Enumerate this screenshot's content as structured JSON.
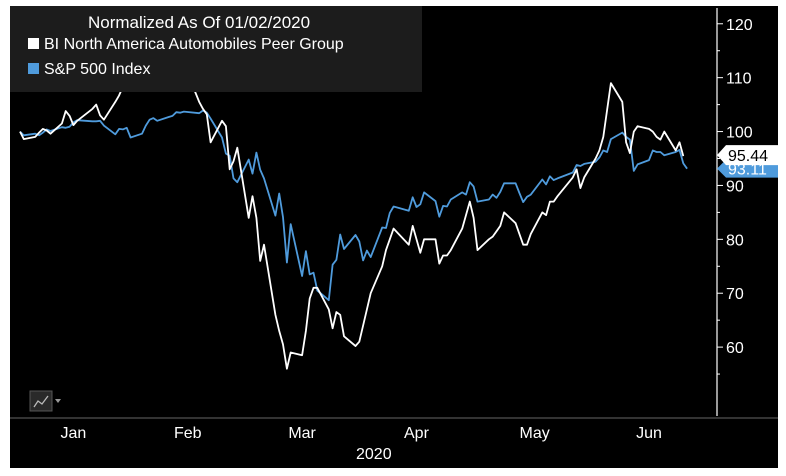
{
  "chart_data": {
    "type": "line",
    "title": "Normalized As Of 01/02/2020",
    "x_axis": {
      "months": [
        "Jan",
        "Feb",
        "Mar",
        "Apr",
        "May",
        "Jun"
      ],
      "year": "2020",
      "range": [
        "2020-01-02",
        "2020-07-01"
      ]
    },
    "y_axis": {
      "side": "right",
      "ticks": [
        60,
        70,
        80,
        90,
        100,
        110,
        120
      ],
      "tick_labels": [
        "60",
        "70",
        "80",
        "90",
        "100",
        "110",
        "120"
      ],
      "range": [
        50,
        122
      ]
    },
    "legend_position": "top-left",
    "grid": false,
    "series": [
      {
        "name": "BI North America Automobiles Peer Group",
        "color": "#ffffff",
        "last_value": "95.44",
        "points": [
          [
            "2020-01-02",
            100
          ],
          [
            "2020-01-03",
            98.6
          ],
          [
            "2020-01-06",
            99.0
          ],
          [
            "2020-01-07",
            99.8
          ],
          [
            "2020-01-08",
            100.5
          ],
          [
            "2020-01-09",
            100.2
          ],
          [
            "2020-01-10",
            99.6
          ],
          [
            "2020-01-13",
            101.5
          ],
          [
            "2020-01-14",
            103.8
          ],
          [
            "2020-01-15",
            102.9
          ],
          [
            "2020-01-16",
            101.2
          ],
          [
            "2020-01-17",
            102.0
          ],
          [
            "2020-01-21",
            104.2
          ],
          [
            "2020-01-22",
            105.0
          ],
          [
            "2020-01-23",
            103.0
          ],
          [
            "2020-01-24",
            102.2
          ],
          [
            "2020-01-27",
            105.5
          ],
          [
            "2020-01-28",
            106.7
          ],
          [
            "2020-01-29",
            108.3
          ],
          [
            "2020-01-30",
            113.0
          ],
          [
            "2020-01-31",
            118.5
          ],
          [
            "2020-02-03",
            110.0
          ],
          [
            "2020-02-04",
            109.5
          ],
          [
            "2020-02-05",
            112.5
          ],
          [
            "2020-02-06",
            115.2
          ],
          [
            "2020-02-07",
            112.0
          ],
          [
            "2020-02-10",
            111.0
          ],
          [
            "2020-02-11",
            113.0
          ],
          [
            "2020-02-12",
            114.0
          ],
          [
            "2020-02-13",
            117.5
          ],
          [
            "2020-02-14",
            112.5
          ],
          [
            "2020-02-18",
            105.5
          ],
          [
            "2020-02-19",
            104.2
          ],
          [
            "2020-02-20",
            103.2
          ],
          [
            "2020-02-21",
            98.0
          ],
          [
            "2020-02-24",
            102.0
          ],
          [
            "2020-02-25",
            101.0
          ],
          [
            "2020-02-26",
            93.0
          ],
          [
            "2020-02-27",
            94.5
          ],
          [
            "2020-02-28",
            97.0
          ],
          [
            "2020-03-02",
            84.0
          ],
          [
            "2020-03-03",
            88.0
          ],
          [
            "2020-03-04",
            84.0
          ],
          [
            "2020-03-05",
            76.0
          ],
          [
            "2020-03-06",
            79.0
          ],
          [
            "2020-03-09",
            66.0
          ],
          [
            "2020-03-10",
            63.0
          ],
          [
            "2020-03-11",
            60.5
          ],
          [
            "2020-03-12",
            56.0
          ],
          [
            "2020-03-13",
            59.0
          ],
          [
            "2020-03-16",
            58.5
          ],
          [
            "2020-03-17",
            63.0
          ],
          [
            "2020-03-18",
            69.0
          ],
          [
            "2020-03-19",
            71.0
          ],
          [
            "2020-03-20",
            71.0
          ],
          [
            "2020-03-23",
            67.0
          ],
          [
            "2020-03-24",
            63.5
          ],
          [
            "2020-03-25",
            66.5
          ],
          [
            "2020-03-26",
            66.0
          ],
          [
            "2020-03-27",
            62.0
          ],
          [
            "2020-03-30",
            60.2
          ],
          [
            "2020-03-31",
            61.0
          ],
          [
            "2020-04-01",
            64.0
          ],
          [
            "2020-04-02",
            67.0
          ],
          [
            "2020-04-03",
            70.0
          ],
          [
            "2020-04-06",
            75.0
          ],
          [
            "2020-04-07",
            78.0
          ],
          [
            "2020-04-08",
            80.0
          ],
          [
            "2020-04-09",
            82.0
          ],
          [
            "2020-04-13",
            79.0
          ],
          [
            "2020-04-14",
            82.5
          ],
          [
            "2020-04-15",
            80.0
          ],
          [
            "2020-04-16",
            77.5
          ],
          [
            "2020-04-17",
            80.0
          ],
          [
            "2020-04-20",
            80.0
          ],
          [
            "2020-04-21",
            75.5
          ],
          [
            "2020-04-22",
            77.0
          ],
          [
            "2020-04-23",
            77.0
          ],
          [
            "2020-04-24",
            78.0
          ],
          [
            "2020-04-27",
            82.0
          ],
          [
            "2020-04-28",
            84.5
          ],
          [
            "2020-04-29",
            87.0
          ],
          [
            "2020-04-30",
            84.0
          ],
          [
            "2020-05-01",
            78.0
          ],
          [
            "2020-05-04",
            80.0
          ],
          [
            "2020-05-05",
            80.5
          ],
          [
            "2020-05-06",
            81.5
          ],
          [
            "2020-05-07",
            82.5
          ],
          [
            "2020-05-08",
            85.0
          ],
          [
            "2020-05-11",
            83.0
          ],
          [
            "2020-05-12",
            81.0
          ],
          [
            "2020-05-13",
            79.0
          ],
          [
            "2020-05-14",
            79.0
          ],
          [
            "2020-05-15",
            81.0
          ],
          [
            "2020-05-18",
            85.0
          ],
          [
            "2020-05-19",
            84.5
          ],
          [
            "2020-05-20",
            87.0
          ],
          [
            "2020-05-21",
            87.0
          ],
          [
            "2020-05-22",
            88.0
          ],
          [
            "2020-05-26",
            91.5
          ],
          [
            "2020-05-27",
            93.0
          ],
          [
            "2020-05-28",
            89.5
          ],
          [
            "2020-05-29",
            91.5
          ],
          [
            "2020-06-01",
            95.0
          ],
          [
            "2020-06-02",
            96.5
          ],
          [
            "2020-06-03",
            99.0
          ],
          [
            "2020-06-04",
            104.0
          ],
          [
            "2020-06-05",
            109.0
          ],
          [
            "2020-06-08",
            105.5
          ],
          [
            "2020-06-09",
            98.0
          ],
          [
            "2020-06-10",
            96.0
          ],
          [
            "2020-06-11",
            100.0
          ],
          [
            "2020-06-12",
            101.0
          ],
          [
            "2020-06-15",
            100.5
          ],
          [
            "2020-06-16",
            100.0
          ],
          [
            "2020-06-17",
            99.0
          ],
          [
            "2020-06-18",
            98.5
          ],
          [
            "2020-06-19",
            100.0
          ],
          [
            "2020-06-22",
            96.5
          ],
          [
            "2020-06-23",
            98.0
          ],
          [
            "2020-06-24",
            95.44
          ]
        ]
      },
      {
        "name": "S&P 500 Index",
        "color": "#4f9bdc",
        "last_value": "93.11",
        "points": [
          [
            "2020-01-02",
            100
          ],
          [
            "2020-01-03",
            99.3
          ],
          [
            "2020-01-06",
            99.6
          ],
          [
            "2020-01-07",
            99.3
          ],
          [
            "2020-01-08",
            99.8
          ],
          [
            "2020-01-09",
            100.4
          ],
          [
            "2020-01-10",
            100.1
          ],
          [
            "2020-01-13",
            100.8
          ],
          [
            "2020-01-14",
            100.7
          ],
          [
            "2020-01-15",
            100.9
          ],
          [
            "2020-01-16",
            101.7
          ],
          [
            "2020-01-17",
            102.1
          ],
          [
            "2020-01-21",
            101.9
          ],
          [
            "2020-01-22",
            101.9
          ],
          [
            "2020-01-23",
            102.0
          ],
          [
            "2020-01-24",
            101.1
          ],
          [
            "2020-01-27",
            99.5
          ],
          [
            "2020-01-28",
            100.5
          ],
          [
            "2020-01-29",
            100.4
          ],
          [
            "2020-01-30",
            100.7
          ],
          [
            "2020-01-31",
            98.9
          ],
          [
            "2020-02-03",
            99.6
          ],
          [
            "2020-02-04",
            101.1
          ],
          [
            "2020-02-05",
            102.2
          ],
          [
            "2020-02-06",
            102.5
          ],
          [
            "2020-02-07",
            102.0
          ],
          [
            "2020-02-10",
            102.7
          ],
          [
            "2020-02-11",
            102.9
          ],
          [
            "2020-02-12",
            103.6
          ],
          [
            "2020-02-13",
            103.5
          ],
          [
            "2020-02-14",
            103.7
          ],
          [
            "2020-02-18",
            103.4
          ],
          [
            "2020-02-19",
            103.9
          ],
          [
            "2020-02-20",
            103.5
          ],
          [
            "2020-02-21",
            102.4
          ],
          [
            "2020-02-24",
            98.9
          ],
          [
            "2020-02-25",
            95.9
          ],
          [
            "2020-02-26",
            95.5
          ],
          [
            "2020-02-27",
            91.3
          ],
          [
            "2020-02-28",
            90.6
          ],
          [
            "2020-03-02",
            94.8
          ],
          [
            "2020-03-03",
            92.2
          ],
          [
            "2020-03-04",
            96.1
          ],
          [
            "2020-03-05",
            92.9
          ],
          [
            "2020-03-06",
            91.3
          ],
          [
            "2020-03-09",
            84.4
          ],
          [
            "2020-03-10",
            88.5
          ],
          [
            "2020-03-11",
            84.1
          ],
          [
            "2020-03-12",
            75.7
          ],
          [
            "2020-03-13",
            82.8
          ],
          [
            "2020-03-16",
            73.2
          ],
          [
            "2020-03-17",
            77.8
          ],
          [
            "2020-03-18",
            73.5
          ],
          [
            "2020-03-19",
            73.8
          ],
          [
            "2020-03-20",
            70.5
          ],
          [
            "2020-03-23",
            68.7
          ],
          [
            "2020-03-24",
            75.3
          ],
          [
            "2020-03-25",
            76.2
          ],
          [
            "2020-03-26",
            80.9
          ],
          [
            "2020-03-27",
            78.2
          ],
          [
            "2020-03-30",
            80.8
          ],
          [
            "2020-03-31",
            79.6
          ],
          [
            "2020-04-01",
            76.1
          ],
          [
            "2020-04-02",
            77.9
          ],
          [
            "2020-04-03",
            76.7
          ],
          [
            "2020-04-06",
            82.2
          ],
          [
            "2020-04-07",
            82.1
          ],
          [
            "2020-04-08",
            84.9
          ],
          [
            "2020-04-09",
            86.1
          ],
          [
            "2020-04-13",
            85.3
          ],
          [
            "2020-04-14",
            87.8
          ],
          [
            "2020-04-15",
            86.0
          ],
          [
            "2020-04-16",
            86.5
          ],
          [
            "2020-04-17",
            88.7
          ],
          [
            "2020-04-20",
            87.1
          ],
          [
            "2020-04-21",
            84.2
          ],
          [
            "2020-04-22",
            86.2
          ],
          [
            "2020-04-23",
            86.1
          ],
          [
            "2020-04-24",
            87.4
          ],
          [
            "2020-04-27",
            88.7
          ],
          [
            "2020-04-28",
            88.3
          ],
          [
            "2020-04-29",
            90.6
          ],
          [
            "2020-04-30",
            89.8
          ],
          [
            "2020-05-01",
            87.0
          ],
          [
            "2020-05-04",
            87.4
          ],
          [
            "2020-05-05",
            88.3
          ],
          [
            "2020-05-06",
            87.7
          ],
          [
            "2020-05-07",
            88.8
          ],
          [
            "2020-05-08",
            90.4
          ],
          [
            "2020-05-11",
            90.4
          ],
          [
            "2020-05-12",
            88.6
          ],
          [
            "2020-05-13",
            86.9
          ],
          [
            "2020-05-14",
            87.9
          ],
          [
            "2020-05-15",
            88.3
          ],
          [
            "2020-05-18",
            91.1
          ],
          [
            "2020-05-19",
            90.2
          ],
          [
            "2020-05-20",
            91.7
          ],
          [
            "2020-05-21",
            91.0
          ],
          [
            "2020-05-22",
            91.3
          ],
          [
            "2020-05-26",
            92.4
          ],
          [
            "2020-05-27",
            93.8
          ],
          [
            "2020-05-28",
            93.6
          ],
          [
            "2020-05-29",
            94.0
          ],
          [
            "2020-06-01",
            94.4
          ],
          [
            "2020-06-02",
            95.2
          ],
          [
            "2020-06-03",
            96.5
          ],
          [
            "2020-06-04",
            96.2
          ],
          [
            "2020-06-05",
            98.6
          ],
          [
            "2020-06-08",
            99.8
          ],
          [
            "2020-06-09",
            99.0
          ],
          [
            "2020-06-10",
            98.5
          ],
          [
            "2020-06-11",
            92.7
          ],
          [
            "2020-06-12",
            93.9
          ],
          [
            "2020-06-15",
            94.7
          ],
          [
            "2020-06-16",
            96.5
          ],
          [
            "2020-06-17",
            96.2
          ],
          [
            "2020-06-18",
            96.2
          ],
          [
            "2020-06-19",
            95.6
          ],
          [
            "2020-06-22",
            96.2
          ],
          [
            "2020-06-23",
            96.6
          ],
          [
            "2020-06-24",
            94.1
          ],
          [
            "2020-06-25",
            93.11
          ]
        ]
      }
    ]
  },
  "toolbar": {
    "chart_type_icon": "line-chart-icon",
    "dropdown_icon": "caret-down-icon"
  }
}
